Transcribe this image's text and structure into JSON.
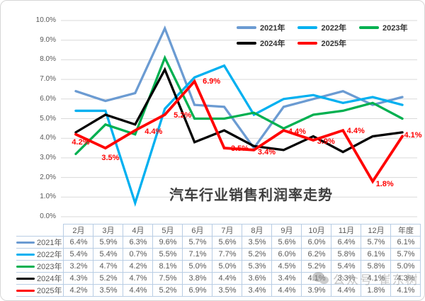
{
  "watermark": {
    "icon": "wechat-icon",
    "text": "公众号·崔东树"
  },
  "chart_data": {
    "type": "line",
    "title": "汽车行业销售利润率走势",
    "xlabel": "",
    "ylabel": "",
    "ylim": [
      0,
      10
    ],
    "grid": true,
    "legend_position": "top-right",
    "y_ticks": [
      "10.0%",
      "9.0%",
      "8.0%",
      "7.0%",
      "6.0%",
      "5.0%",
      "4.0%",
      "3.0%",
      "2.0%",
      "1.0%",
      "0.0%"
    ],
    "categories": [
      "2月",
      "3月",
      "4月",
      "5月",
      "6月",
      "7月",
      "8月",
      "9月",
      "10月",
      "11月",
      "12月",
      "年度"
    ],
    "series": [
      {
        "name": "2021年",
        "color": "#6B9BD2",
        "values": [
          6.4,
          5.9,
          6.3,
          9.6,
          5.7,
          5.6,
          3.5,
          5.6,
          6.0,
          6.4,
          5.7,
          6.1
        ]
      },
      {
        "name": "2022年",
        "color": "#00B0F0",
        "values": [
          5.4,
          5.4,
          0.7,
          5.5,
          7.1,
          7.7,
          5.2,
          6.0,
          6.2,
          5.8,
          6.1,
          5.7
        ]
      },
      {
        "name": "2023年",
        "color": "#00B050",
        "values": [
          3.2,
          4.7,
          4.2,
          8.1,
          5.0,
          5.0,
          5.3,
          4.5,
          5.2,
          5.4,
          5.8,
          5.0
        ]
      },
      {
        "name": "2024年",
        "color": "#000000",
        "values": [
          4.3,
          5.2,
          4.7,
          7.5,
          3.8,
          4.4,
          3.6,
          3.4,
          4.1,
          3.3,
          4.1,
          4.3
        ]
      },
      {
        "name": "2025年",
        "color": "#FF0000",
        "values": [
          4.2,
          3.5,
          4.4,
          5.2,
          6.9,
          3.5,
          3.4,
          4.4,
          3.9,
          4.4,
          1.8,
          4.1
        ],
        "data_labels": [
          "4.2%",
          "3.5%",
          "4.4%",
          "5.2%",
          "6.9%",
          "3.5%",
          "3.4%",
          "4.4%",
          "3.9%",
          "4.4%",
          "1.8%",
          "4.1%"
        ]
      }
    ]
  }
}
